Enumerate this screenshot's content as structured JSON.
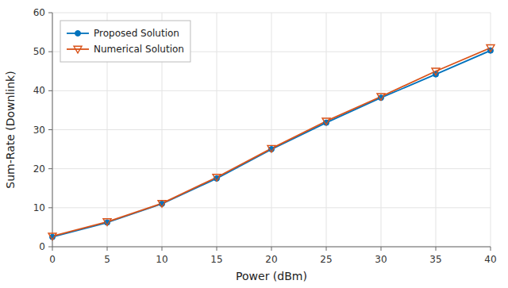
{
  "chart_data": {
    "type": "line",
    "x": [
      0,
      5,
      10,
      15,
      20,
      25,
      30,
      35,
      40
    ],
    "series": [
      {
        "name": "Proposed Solution",
        "color": "#0072BD",
        "marker": "circle",
        "values": [
          2.5,
          6.2,
          11.0,
          17.5,
          25.0,
          31.8,
          38.2,
          44.2,
          50.3
        ]
      },
      {
        "name": "Numerical Solution",
        "color": "#D95319",
        "marker": "triangle-down",
        "values": [
          2.7,
          6.4,
          11.1,
          17.8,
          25.2,
          32.2,
          38.5,
          45.0,
          51.0
        ]
      }
    ],
    "xlabel": "Power (dBm)",
    "ylabel": "Sum-Rate (Downlink)",
    "xlim": [
      0,
      40
    ],
    "ylim": [
      0,
      60
    ],
    "xticks": [
      0,
      5,
      10,
      15,
      20,
      25,
      30,
      35,
      40
    ],
    "yticks": [
      0,
      10,
      20,
      30,
      40,
      50,
      60
    ],
    "grid": true,
    "legend": "upper left"
  }
}
